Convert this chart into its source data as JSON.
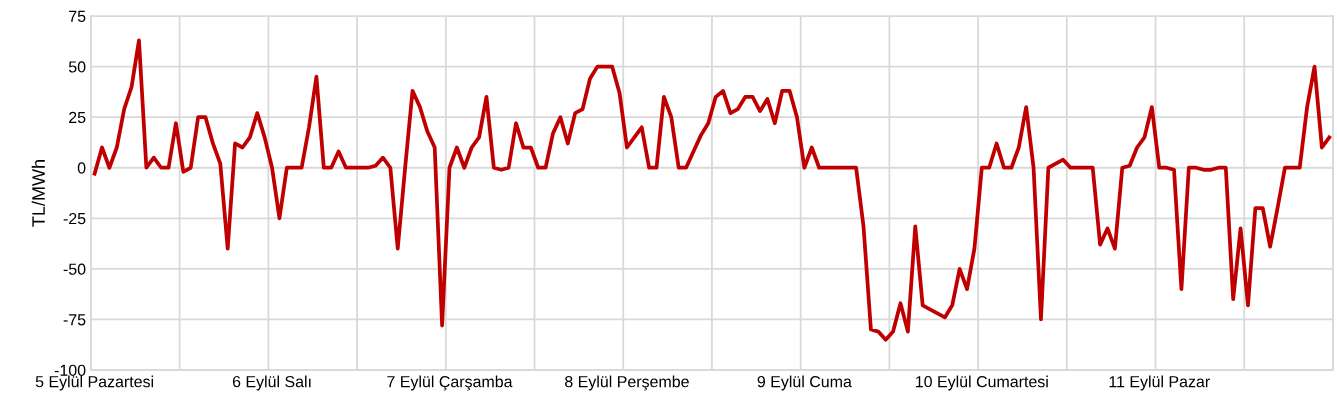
{
  "chart_data": {
    "type": "line",
    "ylabel": "TL/MWh",
    "categories": [
      "5 Eylül Pazartesi",
      null,
      null,
      null,
      null,
      null,
      null,
      null,
      null,
      null,
      null,
      null,
      null,
      null,
      null,
      null,
      null,
      null,
      null,
      null,
      null,
      null,
      null,
      null,
      "6 Eylül Salı",
      null,
      null,
      null,
      null,
      null,
      null,
      null,
      null,
      null,
      null,
      null,
      null,
      null,
      null,
      null,
      null,
      null,
      null,
      null,
      null,
      null,
      null,
      null,
      "7 Eylül Çarşamba",
      null,
      null,
      null,
      null,
      null,
      null,
      null,
      null,
      null,
      null,
      null,
      null,
      null,
      null,
      null,
      null,
      null,
      null,
      null,
      null,
      null,
      null,
      null,
      "8 Eylül Perşembe",
      null,
      null,
      null,
      null,
      null,
      null,
      null,
      null,
      null,
      null,
      null,
      null,
      null,
      null,
      null,
      null,
      null,
      null,
      null,
      null,
      null,
      null,
      null,
      "9 Eylül Cuma",
      null,
      null,
      null,
      null,
      null,
      null,
      null,
      null,
      null,
      null,
      null,
      null,
      null,
      null,
      null,
      null,
      null,
      null,
      null,
      null,
      null,
      null,
      null,
      "10 Eylül Cumartesi",
      null,
      null,
      null,
      null,
      null,
      null,
      null,
      null,
      null,
      null,
      null,
      null,
      null,
      null,
      null,
      null,
      null,
      null,
      null,
      null,
      null,
      null,
      null,
      "11 Eylül Pazar",
      null,
      null,
      null,
      null,
      null,
      null,
      null,
      null,
      null,
      null,
      null,
      null,
      null,
      null,
      null,
      null,
      null,
      null,
      null,
      null,
      null,
      null,
      null
    ],
    "series": [
      {
        "color": "#c00000",
        "values": [
          -3,
          10,
          0,
          10,
          29,
          40,
          63,
          0,
          5,
          0,
          0,
          22,
          -2,
          0,
          25,
          25,
          12,
          2,
          -40,
          12,
          10,
          15,
          27,
          15,
          0,
          -25,
          0,
          0,
          0,
          20,
          45,
          0,
          0,
          8,
          0,
          0,
          0,
          0,
          1,
          5,
          0,
          -40,
          0,
          38,
          30,
          18,
          10,
          -78,
          0,
          10,
          0,
          10,
          15,
          35,
          0,
          -1,
          0,
          22,
          10,
          10,
          0,
          0,
          17,
          25,
          12,
          27,
          29,
          44,
          50,
          50,
          50,
          37,
          10,
          15,
          20,
          0,
          0,
          35,
          25,
          0,
          0,
          8,
          16,
          22,
          35,
          38,
          27,
          29,
          35,
          35,
          28,
          34,
          22,
          38,
          38,
          25,
          0,
          10,
          0,
          0,
          0,
          0,
          0,
          0,
          -29,
          -80,
          -81,
          -85,
          -81,
          -67,
          -81,
          -29,
          -68,
          -70,
          -72,
          -74,
          -68,
          -50,
          -60,
          -40,
          0,
          0,
          12,
          0,
          0,
          10,
          30,
          0,
          -75,
          0,
          2,
          4,
          0,
          0,
          0,
          0,
          -38,
          -30,
          -40,
          0,
          1,
          10,
          15,
          30,
          0,
          0,
          -1,
          -60,
          0,
          0,
          -1,
          -1,
          0,
          0,
          -65,
          -30,
          -68,
          -20,
          -20,
          -39,
          -20,
          0,
          0,
          0,
          30,
          50,
          10,
          15
        ]
      }
    ],
    "ylim": [
      -100,
      75
    ],
    "yticks": [
      -100,
      -75,
      -50,
      -25,
      0,
      25,
      50,
      75
    ],
    "grid": true,
    "legend": false,
    "marker": "none",
    "line_style": "solid"
  }
}
